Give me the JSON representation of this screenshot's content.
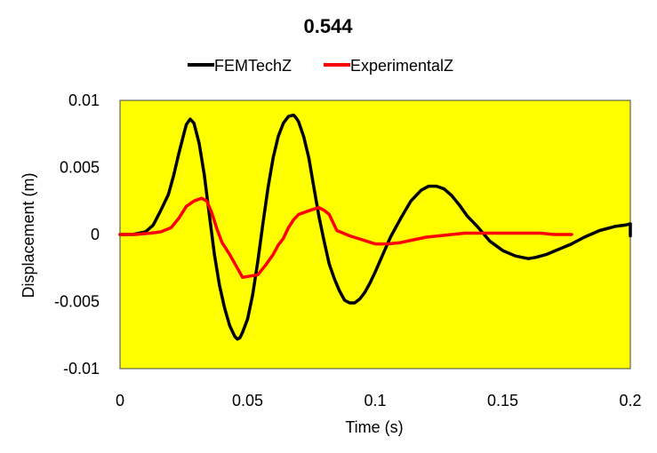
{
  "chart_data": {
    "type": "line",
    "title": "0.544",
    "xlabel": "Time (s)",
    "ylabel": "Displacement (m)",
    "xlim": [
      0,
      0.2
    ],
    "ylim": [
      -0.01,
      0.01
    ],
    "x_ticks": [
      0,
      0.05,
      0.1,
      0.15,
      0.2
    ],
    "x_tick_labels": [
      "0",
      "0.05",
      "0.1",
      "0.15",
      "0.2"
    ],
    "y_ticks": [
      0.01,
      0.005,
      0,
      -0.005,
      -0.01
    ],
    "y_tick_labels": [
      "0.01",
      "0.005",
      "0",
      "-0.005",
      "-0.01"
    ],
    "grid": false,
    "legend_position": "top",
    "plot_background": "#ffff00",
    "series": [
      {
        "name": "FEMTechZ",
        "color": "#000000",
        "x": [
          0,
          0.005,
          0.01,
          0.013,
          0.016,
          0.019,
          0.021,
          0.023,
          0.025,
          0.026,
          0.0275,
          0.029,
          0.031,
          0.033,
          0.035,
          0.037,
          0.039,
          0.041,
          0.043,
          0.045,
          0.046,
          0.047,
          0.048,
          0.05,
          0.052,
          0.054,
          0.056,
          0.058,
          0.06,
          0.062,
          0.064,
          0.066,
          0.068,
          0.069,
          0.07,
          0.072,
          0.074,
          0.076,
          0.078,
          0.08,
          0.082,
          0.084,
          0.086,
          0.088,
          0.09,
          0.092,
          0.094,
          0.096,
          0.098,
          0.1,
          0.103,
          0.106,
          0.11,
          0.114,
          0.118,
          0.121,
          0.124,
          0.127,
          0.13,
          0.133,
          0.136,
          0.14,
          0.145,
          0.15,
          0.155,
          0.16,
          0.163,
          0.167,
          0.172,
          0.177,
          0.182,
          0.188,
          0.194,
          0.198,
          0.2,
          0.2
        ],
        "y": [
          0,
          0,
          0.0002,
          0.0007,
          0.0018,
          0.003,
          0.0044,
          0.006,
          0.0075,
          0.0082,
          0.0086,
          0.0083,
          0.0068,
          0.0045,
          0.0015,
          -0.0015,
          -0.0038,
          -0.0055,
          -0.0068,
          -0.0076,
          -0.0078,
          -0.0077,
          -0.0073,
          -0.0063,
          -0.0045,
          -0.002,
          0.0008,
          0.0035,
          0.0057,
          0.0073,
          0.0083,
          0.0088,
          0.0089,
          0.0087,
          0.0084,
          0.0073,
          0.0057,
          0.0035,
          0.0013,
          -0.0005,
          -0.0022,
          -0.0033,
          -0.0042,
          -0.0049,
          -0.0051,
          -0.0051,
          -0.0048,
          -0.0043,
          -0.0036,
          -0.0028,
          -0.0015,
          -0.0002,
          0.0012,
          0.0025,
          0.0033,
          0.0036,
          0.0036,
          0.0034,
          0.0029,
          0.0022,
          0.0014,
          0.0006,
          -0.0005,
          -0.0012,
          -0.0016,
          -0.0018,
          -0.0017,
          -0.0015,
          -0.0011,
          -0.0007,
          -0.0002,
          0.0003,
          0.0006,
          0.0007,
          0.0008,
          -0.0001
        ]
      },
      {
        "name": "ExperimentalZ",
        "color": "#ff0000",
        "x": [
          0,
          0.006,
          0.012,
          0.016,
          0.02,
          0.023,
          0.026,
          0.029,
          0.032,
          0.034,
          0.036,
          0.038,
          0.04,
          0.043,
          0.046,
          0.048,
          0.051,
          0.054,
          0.057,
          0.06,
          0.062,
          0.064,
          0.066,
          0.068,
          0.07,
          0.073,
          0.076,
          0.078,
          0.08,
          0.082,
          0.085,
          0.09,
          0.095,
          0.1,
          0.105,
          0.11,
          0.115,
          0.12,
          0.125,
          0.13,
          0.135,
          0.14,
          0.145,
          0.15,
          0.155,
          0.16,
          0.165,
          0.17,
          0.177
        ],
        "y": [
          0,
          0,
          0.0001,
          0.0002,
          0.0005,
          0.0012,
          0.0021,
          0.0025,
          0.0027,
          0.0025,
          0.0016,
          0.0004,
          -0.0006,
          -0.0015,
          -0.0025,
          -0.0032,
          -0.0031,
          -0.003,
          -0.0023,
          -0.0015,
          -0.0008,
          -0.0003,
          0.0005,
          0.0011,
          0.0015,
          0.0017,
          0.0019,
          0.002,
          0.0018,
          0.0015,
          0.0003,
          -0.0001,
          -0.0004,
          -0.0007,
          -0.0007,
          -0.0006,
          -0.0004,
          -0.0002,
          -0.0001,
          0,
          0.0001,
          0.0001,
          0.0001,
          0.0001,
          0.0001,
          0.0001,
          0.0001,
          0,
          0
        ]
      }
    ]
  }
}
